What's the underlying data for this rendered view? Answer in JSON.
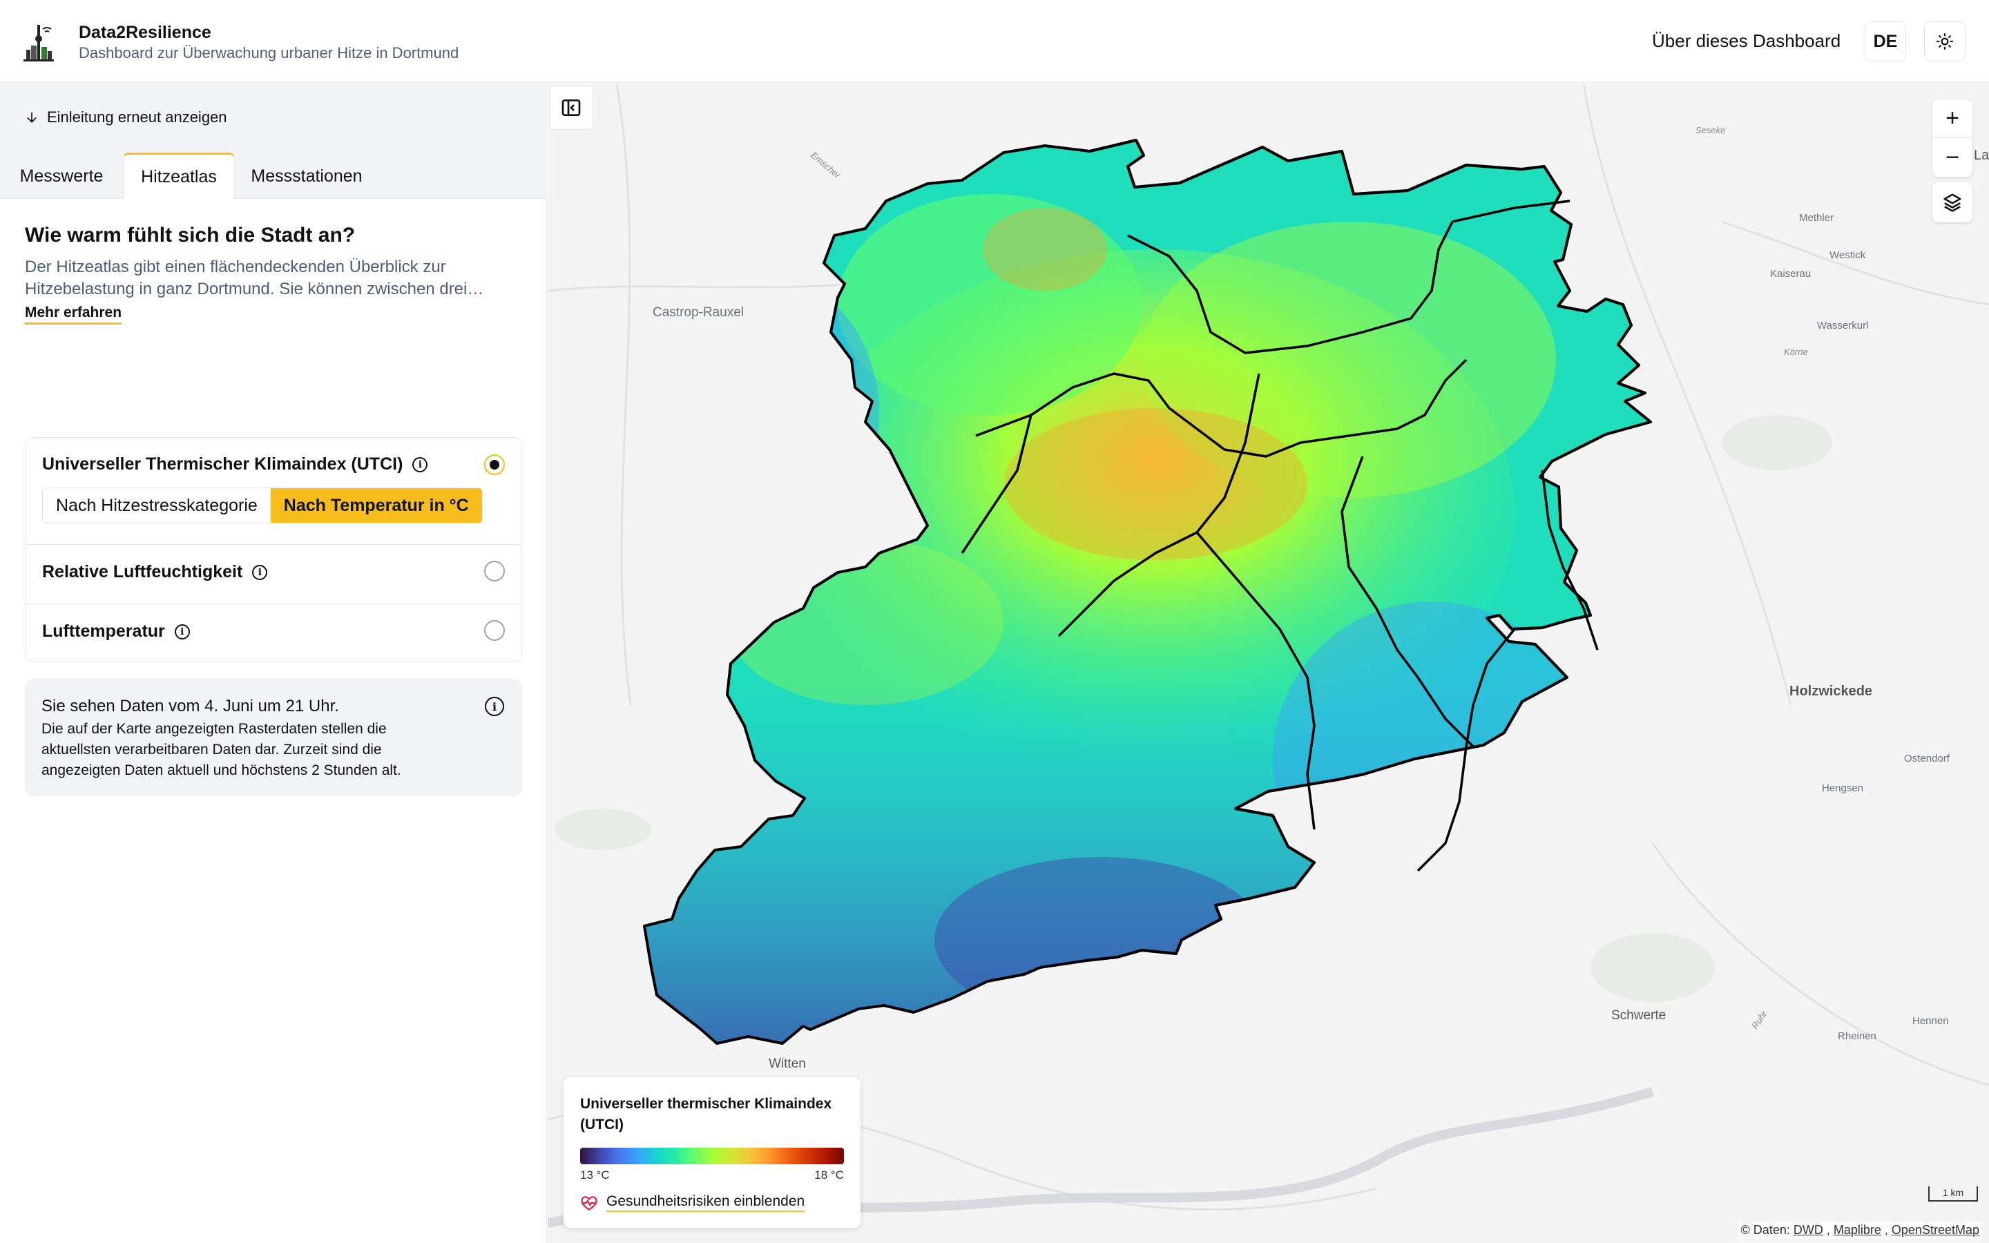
{
  "header": {
    "app_title": "Data2Resilience",
    "app_subtitle": "Dashboard zur Überwachung urbaner Hitze in Dortmund",
    "about_link": "Über dieses Dashboard",
    "language": "DE",
    "theme_icon": "sun-icon"
  },
  "sidebar": {
    "intro_link": "Einleitung erneut anzeigen",
    "tabs": [
      "Messwerte",
      "Hitzeatlas",
      "Messstationen"
    ],
    "active_tab": "Hitzeatlas",
    "heading": "Wie warm fühlt sich die Stadt an?",
    "description": "Der Hitzeatlas gibt einen flächendeckenden Überblick zur Hitzebelastung in ganz Dortmund. Sie können zwischen drei…",
    "more_link": "Mehr erfahren",
    "options": [
      {
        "label": "Universeller Thermischer Klimaindex (UTCI)",
        "selected": true
      },
      {
        "label": "Relative Luftfeuchtigkeit",
        "selected": false
      },
      {
        "label": "Lufttemperatur",
        "selected": false
      }
    ],
    "utci_modes": [
      "Nach Hitzestresskategorie",
      "Nach Temperatur in °C"
    ],
    "active_mode": "Nach Temperatur in °C",
    "notice_title": "Sie sehen Daten vom 4. Juni um 21 Uhr.",
    "notice_body": "Die auf der Karte angezeigten Rasterdaten stellen die aktuellsten verarbeitbaren Daten dar. Zurzeit sind die angezeigten Daten aktuell und höchstens 2 Stunden alt."
  },
  "map": {
    "places": [
      "Castrop-Rauxel",
      "Methler",
      "Westick",
      "Kaiserau",
      "Wasserkurl",
      "Holzwickede",
      "Ostendorf",
      "Hengsen",
      "Schwerte",
      "Hennen",
      "Rheinen",
      "Witten",
      "Körne",
      "Seseke",
      "Emscher",
      "Ruhr",
      "Lan"
    ],
    "zoom_in": "+",
    "zoom_out": "−",
    "legend": {
      "title": "Universeller thermischer Klimaindex (UTCI)",
      "min_label": "13 °C",
      "max_label": "18 °C",
      "health_link": "Gesundheitsrisiken einblenden"
    },
    "scale_label": "1 km",
    "attribution_prefix": "©  Daten:",
    "attribution_links": [
      "DWD",
      "Maplibre",
      "OpenStreetMap"
    ]
  }
}
